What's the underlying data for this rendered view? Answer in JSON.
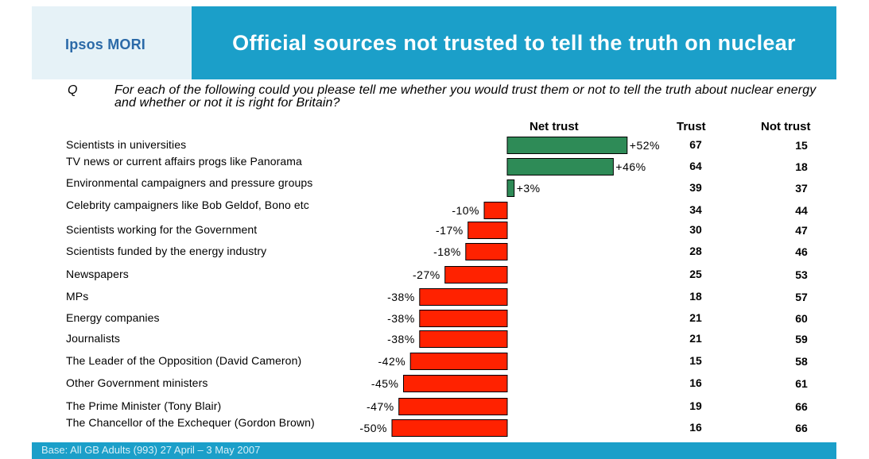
{
  "header": {
    "logo": "Ipsos MORI",
    "title": "Official sources not trusted to tell the truth on nuclear"
  },
  "question": {
    "label": "Q",
    "text": "For each of the following could you please tell me whether you would trust them or not to tell the truth about nuclear energy and whether or not it is right for Britain?"
  },
  "columns": {
    "net": "Net trust",
    "trust": "Trust",
    "not_trust": "Not trust"
  },
  "chart_data": {
    "type": "bar",
    "orientation": "horizontal",
    "title": "Official sources not trusted to tell the truth on nuclear",
    "categories": [
      "Scientists in universities",
      "TV news or current affairs progs like Panorama",
      "Environmental campaigners and pressure groups",
      "Celebrity campaigners like Bob Geldof, Bono etc",
      "Scientists working for the Government",
      "Scientists funded by the energy industry",
      "Newspapers",
      "MPs",
      "Energy companies",
      "Journalists",
      "The Leader of the Opposition (David Cameron)",
      "Other Government ministers",
      "The Prime Minister (Tony Blair)",
      "The Chancellor of the Exchequer (Gordon Brown)"
    ],
    "series": [
      {
        "name": "Net trust",
        "values": [
          52,
          46,
          3,
          -10,
          -17,
          -18,
          -27,
          -38,
          -38,
          -38,
          -42,
          -45,
          -47,
          -50
        ],
        "labels": [
          "+52%",
          "+46%",
          "+3%",
          "-10%",
          "-17%",
          "-18%",
          "-27%",
          "-38%",
          "-38%",
          "-38%",
          "-42%",
          "-45%",
          "-47%",
          "-50%"
        ]
      },
      {
        "name": "Trust",
        "values": [
          67,
          64,
          39,
          34,
          30,
          28,
          25,
          18,
          21,
          21,
          15,
          16,
          19,
          16
        ]
      },
      {
        "name": "Not trust",
        "values": [
          15,
          18,
          37,
          44,
          47,
          46,
          53,
          57,
          60,
          59,
          58,
          61,
          66,
          66
        ]
      }
    ],
    "colors": {
      "positive": "#2e8b57",
      "negative": "#ff2200"
    }
  },
  "footer": {
    "base": "Base: All GB Adults (993) 27 April – 3 May 2007"
  }
}
